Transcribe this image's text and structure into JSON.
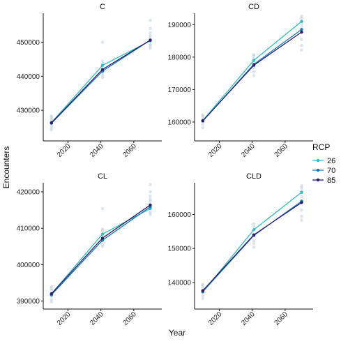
{
  "chart_data": {
    "type": "line",
    "xlabel": "Year",
    "ylabel": "Encounters",
    "legend": {
      "title": "RCP",
      "position": "right",
      "entries": [
        {
          "label": "26",
          "color": "#2ebfc4"
        },
        {
          "label": "70",
          "color": "#1a7bb5"
        },
        {
          "label": "85",
          "color": "#2d1f6e"
        }
      ]
    },
    "grid": false,
    "x_ticks": [
      2020,
      2040,
      2060
    ],
    "panels": [
      {
        "title": "C",
        "xlim": [
          2005,
          2077
        ],
        "ylim": [
          421000,
          458500
        ],
        "y_ticks": [
          430000,
          440000,
          450000
        ],
        "y_tick_labels": [
          "430000",
          "440000",
          "450000"
        ],
        "series": [
          {
            "name": "26",
            "x": [
              2010,
              2041,
              2070
            ],
            "y": [
              426400,
              443200,
              450400
            ]
          },
          {
            "name": "70",
            "x": [
              2010,
              2041,
              2070
            ],
            "y": [
              426200,
              441500,
              450600
            ]
          },
          {
            "name": "85",
            "x": [
              2010,
              2041,
              2070
            ],
            "y": [
              426300,
              442000,
              450600
            ]
          }
        ],
        "scatter": [
          {
            "x": 2010,
            "y": [
              424200,
              424800,
              425500,
              426800,
              427300,
              427900,
              428300
            ]
          },
          {
            "x": 2041,
            "y": [
              439600,
              440300,
              441000,
              443700,
              444400,
              450000
            ]
          },
          {
            "x": 2070,
            "y": [
              448200,
              448900,
              449400,
              451200,
              451900,
              452700,
              454000,
              456400
            ]
          }
        ]
      },
      {
        "title": "CD",
        "xlim": [
          2005,
          2077
        ],
        "ylim": [
          154200,
          193500
        ],
        "y_ticks": [
          160000,
          170000,
          180000,
          190000
        ],
        "y_tick_labels": [
          "160000",
          "170000",
          "180000",
          "190000"
        ],
        "series": [
          {
            "name": "26",
            "x": [
              2010,
              2041,
              2070
            ],
            "y": [
              160500,
              179000,
              191000
            ]
          },
          {
            "name": "70",
            "x": [
              2010,
              2041,
              2070
            ],
            "y": [
              160300,
              177800,
              188500
            ]
          },
          {
            "name": "85",
            "x": [
              2010,
              2041,
              2070
            ],
            "y": [
              160400,
              177500,
              187700
            ]
          }
        ],
        "scatter": [
          {
            "x": 2010,
            "y": [
              158300,
              159400,
              161100,
              161800,
              162200
            ]
          },
          {
            "x": 2041,
            "y": [
              174300,
              175400,
              176800,
              179500,
              180300,
              180800
            ]
          },
          {
            "x": 2070,
            "y": [
              182200,
              183600,
              185400,
              189300,
              190200,
              191900,
              192600
            ]
          }
        ]
      },
      {
        "title": "CL",
        "xlim": [
          2005,
          2077
        ],
        "ylim": [
          387800,
          422500
        ],
        "y_ticks": [
          390000,
          400000,
          410000,
          420000
        ],
        "y_tick_labels": [
          "390000",
          "400000",
          "410000",
          "420000"
        ],
        "series": [
          {
            "name": "26",
            "x": [
              2010,
              2041,
              2070
            ],
            "y": [
              392000,
              408400,
              415400
            ]
          },
          {
            "name": "70",
            "x": [
              2010,
              2041,
              2070
            ],
            "y": [
              391700,
              406700,
              415900
            ]
          },
          {
            "name": "85",
            "x": [
              2010,
              2041,
              2070
            ],
            "y": [
              392000,
              407300,
              416400
            ]
          }
        ],
        "scatter": [
          {
            "x": 2010,
            "y": [
              389800,
              390400,
              391300,
              393000,
              393500,
              394000
            ]
          },
          {
            "x": 2041,
            "y": [
              405000,
              405600,
              409200,
              409800,
              415400
            ]
          },
          {
            "x": 2070,
            "y": [
              413800,
              414400,
              417400,
              418000,
              418800,
              420000,
              422000
            ]
          }
        ]
      },
      {
        "title": "CLD",
        "xlim": [
          2005,
          2077
        ],
        "ylim": [
          132200,
          169300
        ],
        "y_ticks": [
          140000,
          150000,
          160000
        ],
        "y_tick_labels": [
          "140000",
          "150000",
          "160000"
        ],
        "series": [
          {
            "name": "26",
            "x": [
              2010,
              2041,
              2070
            ],
            "y": [
              137200,
              155500,
              166500
            ]
          },
          {
            "name": "70",
            "x": [
              2010,
              2041,
              2070
            ],
            "y": [
              137300,
              153800,
              163900
            ]
          },
          {
            "name": "85",
            "x": [
              2010,
              2041,
              2070
            ],
            "y": [
              137600,
              154000,
              163500
            ]
          }
        ],
        "scatter": [
          {
            "x": 2010,
            "y": [
              135300,
              136100,
              138400,
              139100,
              139500
            ]
          },
          {
            "x": 2041,
            "y": [
              150400,
              151500,
              152300,
              156400,
              157200
            ]
          },
          {
            "x": 2070,
            "y": [
              158300,
              159400,
              161300,
              165200,
              166900,
              167800,
              168400
            ]
          }
        ]
      }
    ]
  }
}
